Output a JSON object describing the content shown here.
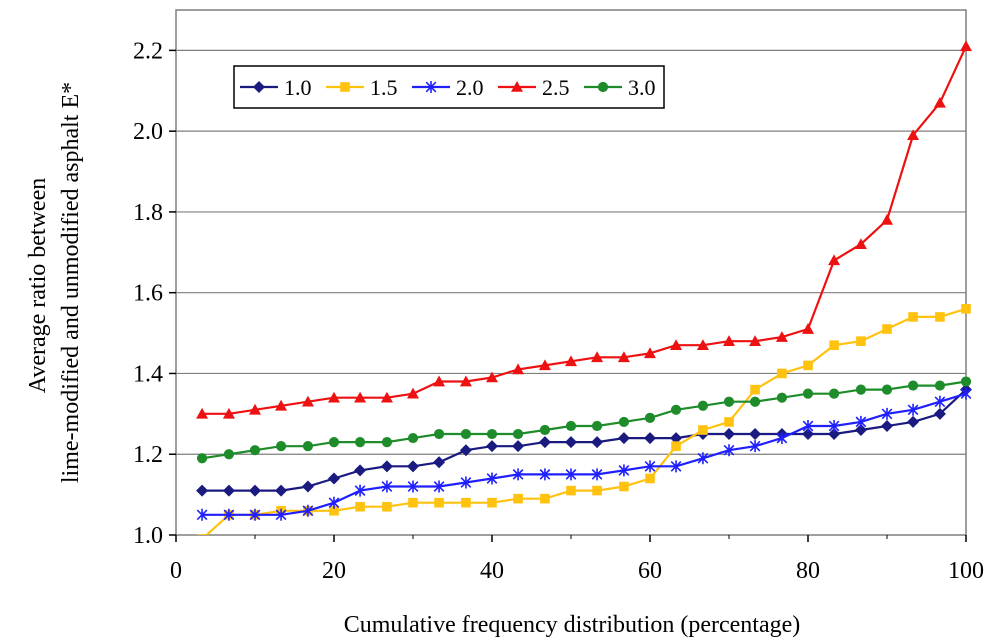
{
  "chart_data": {
    "type": "line",
    "title": "",
    "xlabel": "Cumulative frequency distribution (percentage)",
    "ylabel_lines": [
      "Average ratio between",
      "lime-modified and unmodified asphalt E*"
    ],
    "xlim": [
      0,
      100
    ],
    "ylim": [
      1.0,
      2.3
    ],
    "x_ticks": [
      0,
      20,
      40,
      60,
      80,
      100
    ],
    "x_tick_labels": [
      "0",
      "20",
      "40",
      "60",
      "80",
      "100"
    ],
    "y_ticks": [
      1.0,
      1.2,
      1.4,
      1.6,
      1.8,
      2.0,
      2.2
    ],
    "y_tick_labels": [
      "1.0",
      "1.2",
      "1.4",
      "1.6",
      "1.8",
      "2.0",
      "2.2"
    ],
    "grid": "horizontal",
    "legend_position": "top-left",
    "x": [
      3.3,
      6.7,
      10.0,
      13.3,
      16.7,
      20.0,
      23.3,
      26.7,
      30.0,
      33.3,
      36.7,
      40.0,
      43.3,
      46.7,
      50.0,
      53.3,
      56.7,
      60.0,
      63.3,
      66.7,
      70.0,
      73.3,
      76.7,
      80.0,
      83.3,
      86.7,
      90.0,
      93.3,
      96.7,
      100.0
    ],
    "series": [
      {
        "name": "1.0",
        "color": "#1a1a80",
        "marker": "diamond",
        "values": [
          1.11,
          1.11,
          1.11,
          1.11,
          1.12,
          1.14,
          1.16,
          1.17,
          1.17,
          1.18,
          1.21,
          1.22,
          1.22,
          1.23,
          1.23,
          1.23,
          1.24,
          1.24,
          1.24,
          1.25,
          1.25,
          1.25,
          1.25,
          1.25,
          1.25,
          1.26,
          1.27,
          1.28,
          1.3,
          1.36
        ]
      },
      {
        "name": "1.5",
        "color": "#ffc20e",
        "marker": "square",
        "values": [
          0.99,
          1.05,
          1.05,
          1.06,
          1.06,
          1.06,
          1.07,
          1.07,
          1.08,
          1.08,
          1.08,
          1.08,
          1.09,
          1.09,
          1.11,
          1.11,
          1.12,
          1.14,
          1.22,
          1.26,
          1.28,
          1.36,
          1.4,
          1.42,
          1.47,
          1.48,
          1.51,
          1.54,
          1.54,
          1.56
        ]
      },
      {
        "name": "2.0",
        "color": "#1f1fff",
        "marker": "star",
        "values": [
          1.05,
          1.05,
          1.05,
          1.05,
          1.06,
          1.08,
          1.11,
          1.12,
          1.12,
          1.12,
          1.13,
          1.14,
          1.15,
          1.15,
          1.15,
          1.15,
          1.16,
          1.17,
          1.17,
          1.19,
          1.21,
          1.22,
          1.24,
          1.27,
          1.27,
          1.28,
          1.3,
          1.31,
          1.33,
          1.35
        ]
      },
      {
        "name": "2.5",
        "color": "#ee1111",
        "marker": "triangle",
        "values": [
          1.3,
          1.3,
          1.31,
          1.32,
          1.33,
          1.34,
          1.34,
          1.34,
          1.35,
          1.38,
          1.38,
          1.39,
          1.41,
          1.42,
          1.43,
          1.44,
          1.44,
          1.45,
          1.47,
          1.47,
          1.48,
          1.48,
          1.49,
          1.51,
          1.68,
          1.72,
          1.78,
          1.99,
          2.07,
          2.21
        ]
      },
      {
        "name": "3.0",
        "color": "#1e8c2a",
        "marker": "circle",
        "values": [
          1.19,
          1.2,
          1.21,
          1.22,
          1.22,
          1.23,
          1.23,
          1.23,
          1.24,
          1.25,
          1.25,
          1.25,
          1.25,
          1.26,
          1.27,
          1.27,
          1.28,
          1.29,
          1.31,
          1.32,
          1.33,
          1.33,
          1.34,
          1.35,
          1.35,
          1.36,
          1.36,
          1.37,
          1.37,
          1.38
        ]
      }
    ]
  }
}
